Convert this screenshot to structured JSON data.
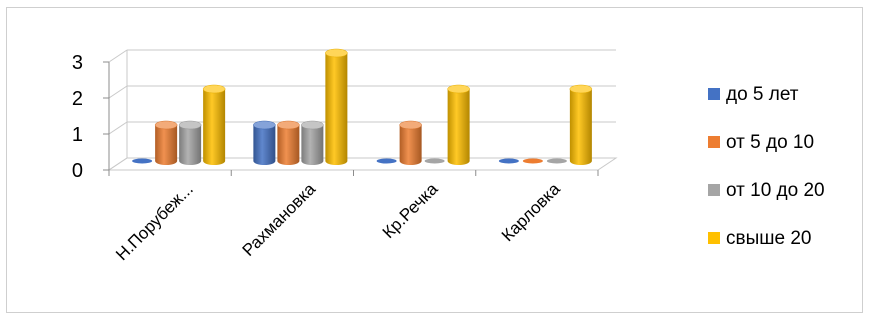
{
  "chart_data": {
    "type": "bar",
    "title": "",
    "xlabel": "",
    "ylabel": "",
    "ylim": [
      0,
      3
    ],
    "yticks": [
      0,
      1,
      2,
      3
    ],
    "categories": [
      "Н.Порубеж...",
      "Рахмановка",
      "Кр.Речка",
      "Карловка"
    ],
    "series": [
      {
        "name": "до 5 лет",
        "color": "#4472C4",
        "values": [
          0,
          1,
          0,
          0
        ]
      },
      {
        "name": "от 5 до 10",
        "color": "#ED7D31",
        "values": [
          1,
          1,
          1,
          0
        ]
      },
      {
        "name": "от 10 до 20",
        "color": "#A5A5A5",
        "values": [
          1,
          1,
          0,
          0
        ]
      },
      {
        "name": "свыше 20",
        "color": "#FFC000",
        "values": [
          2,
          3,
          2,
          2
        ]
      }
    ],
    "grid": true,
    "legend": "right",
    "style": "3d-cylinder"
  }
}
